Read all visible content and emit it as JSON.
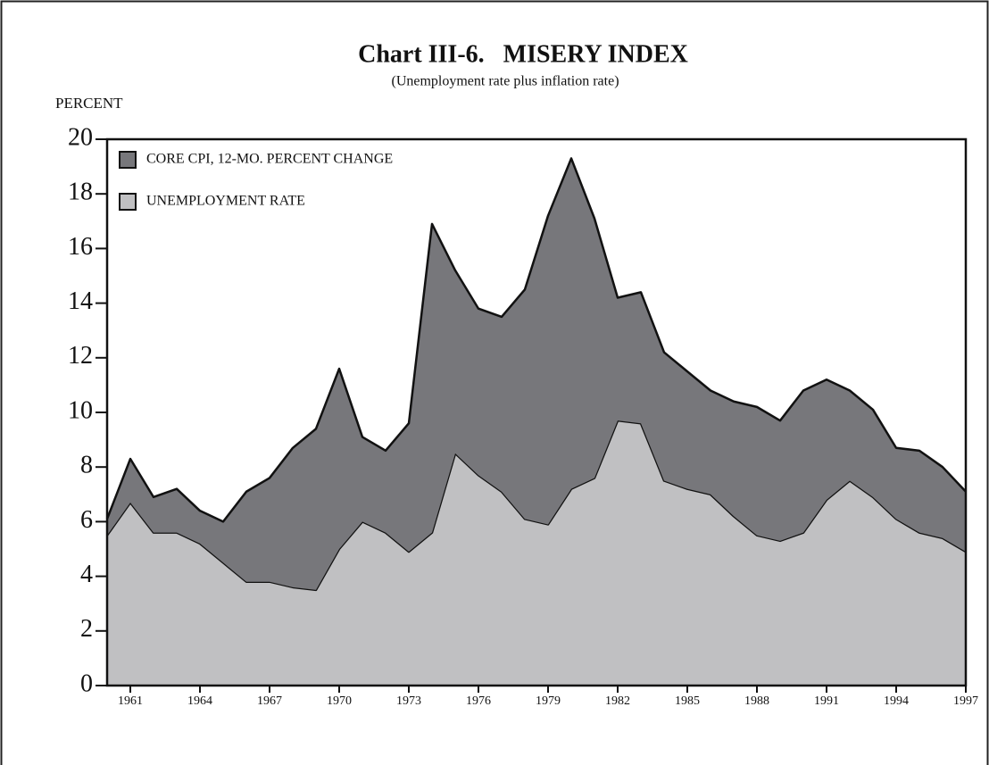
{
  "chart_data": {
    "type": "stacked_area",
    "title": "Chart III-6.   MISERY INDEX",
    "subtitle": "(Unemployment rate plus inflation rate)",
    "y_label": "PERCENT",
    "x": [
      1960,
      1961,
      1962,
      1963,
      1964,
      1965,
      1966,
      1967,
      1968,
      1969,
      1970,
      1971,
      1972,
      1973,
      1974,
      1975,
      1976,
      1977,
      1978,
      1979,
      1980,
      1981,
      1982,
      1983,
      1984,
      1985,
      1986,
      1987,
      1988,
      1989,
      1990,
      1991,
      1992,
      1993,
      1994,
      1995,
      1996,
      1997
    ],
    "series": [
      {
        "name": "CORE CPI, 12-MO. PERCENT CHANGE",
        "color": "#77777b",
        "values": [
          0.6,
          1.6,
          1.3,
          1.6,
          1.2,
          1.5,
          3.3,
          3.8,
          5.1,
          5.9,
          6.6,
          3.1,
          3.0,
          4.7,
          11.3,
          6.7,
          6.1,
          6.4,
          8.4,
          11.3,
          12.1,
          9.5,
          4.5,
          4.8,
          4.7,
          4.3,
          3.8,
          4.2,
          4.7,
          4.4,
          5.2,
          4.4,
          3.3,
          3.2,
          2.6,
          3.0,
          2.6,
          2.2
        ]
      },
      {
        "name": "UNEMPLOYMENT RATE",
        "color": "#c0c0c2",
        "values": [
          5.5,
          6.7,
          5.6,
          5.6,
          5.2,
          4.5,
          3.8,
          3.8,
          3.6,
          3.5,
          5.0,
          6.0,
          5.6,
          4.9,
          5.6,
          8.5,
          7.7,
          7.1,
          6.1,
          5.9,
          7.2,
          7.6,
          9.7,
          9.6,
          7.5,
          7.2,
          7.0,
          6.2,
          5.5,
          5.3,
          5.6,
          6.8,
          7.5,
          6.9,
          6.1,
          5.6,
          5.4,
          4.9
        ]
      }
    ],
    "xlim": [
      1960,
      1997
    ],
    "xticks": [
      1961,
      1964,
      1967,
      1970,
      1973,
      1976,
      1979,
      1982,
      1985,
      1988,
      1991,
      1994,
      1997
    ],
    "ylim": [
      0,
      20
    ],
    "yticks": [
      0,
      2,
      4,
      6,
      8,
      10,
      12,
      14,
      16,
      18,
      20
    ],
    "legend": "top-left"
  }
}
